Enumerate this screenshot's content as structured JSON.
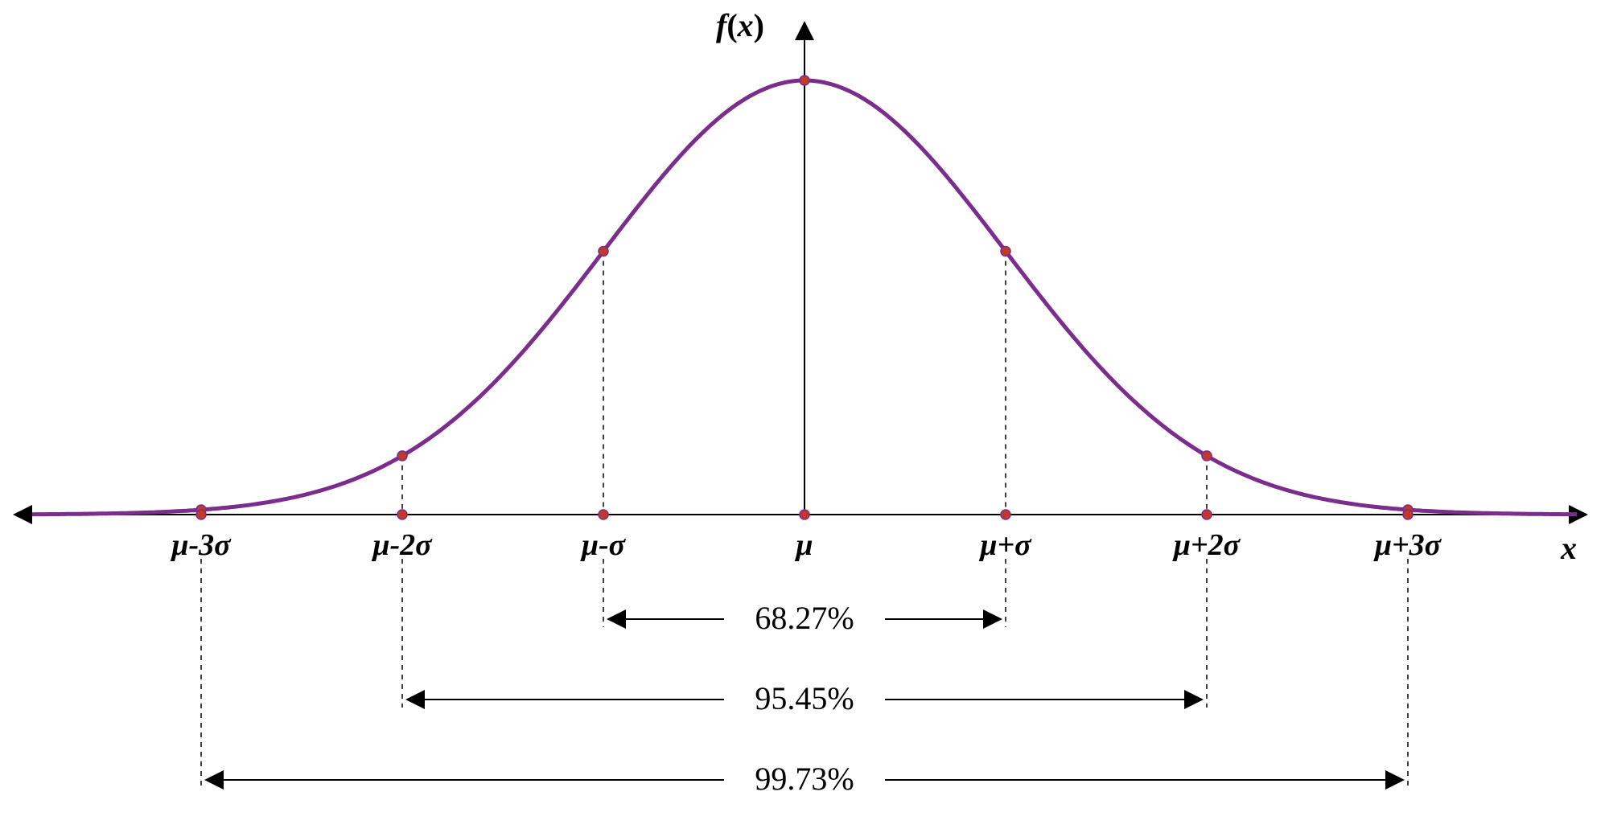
{
  "diagram": {
    "type": "line",
    "background_color": "#ffffff",
    "curve_color": "#7b2d8e",
    "curve_stroke_width": 5,
    "axis_color": "#000000",
    "axis_stroke_width": 2,
    "dashed_color": "#000000",
    "dashed_stroke_width": 1.5,
    "dashed_pattern": "6,6",
    "marker_fill": "#c0392b",
    "marker_stroke": "#7b2d8e",
    "marker_radius": 6,
    "arrow_stroke_width": 2,
    "axes": {
      "y_label": "f(x)",
      "x_label": "x",
      "label_fontsize": 40
    },
    "ticks": [
      {
        "key": "m3",
        "label": "μ-3σ"
      },
      {
        "key": "m2",
        "label": "μ-2σ"
      },
      {
        "key": "m1",
        "label": "μ-σ"
      },
      {
        "key": "mu",
        "label": "μ"
      },
      {
        "key": "p1",
        "label": "μ+σ"
      },
      {
        "key": "p2",
        "label": "μ+2σ"
      },
      {
        "key": "p3",
        "label": "μ+3σ"
      }
    ],
    "tick_fontsize": 38,
    "percentages": {
      "one_sigma": "68.27%",
      "two_sigma": "95.45%",
      "three_sigma": "99.73%",
      "fontsize": 40
    }
  }
}
